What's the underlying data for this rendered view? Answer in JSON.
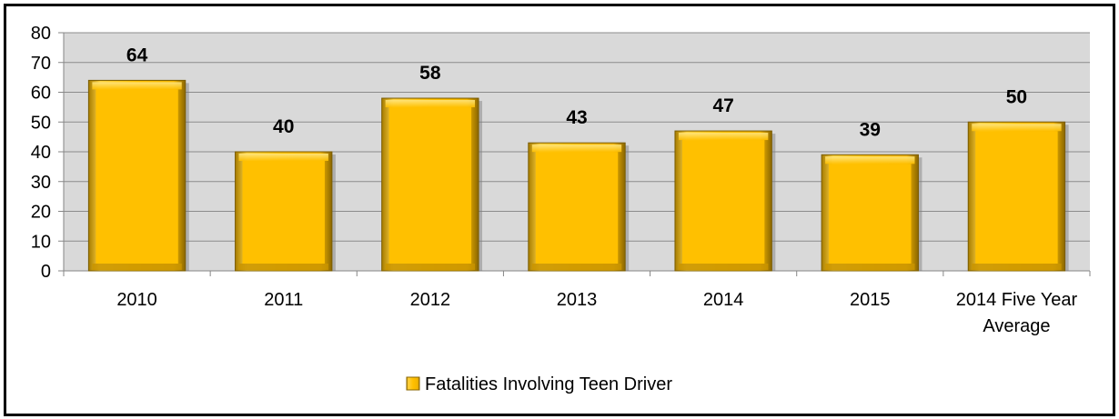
{
  "chart_data": {
    "type": "bar",
    "categories": [
      "2010",
      "2011",
      "2012",
      "2013",
      "2014",
      "2015",
      "2014 Five Year Average"
    ],
    "series": [
      {
        "name": "Fatalities Involving Teen Driver",
        "values": [
          64,
          40,
          58,
          43,
          47,
          39,
          50
        ]
      }
    ],
    "data_labels": [
      "64",
      "40",
      "58",
      "43",
      "47",
      "39",
      "50"
    ],
    "y_ticks": [
      "0",
      "10",
      "20",
      "30",
      "40",
      "50",
      "60",
      "70",
      "80"
    ],
    "ylim": [
      0,
      80
    ],
    "title": "",
    "xlabel": "",
    "ylabel": "",
    "grid": true,
    "legend_position": "bottom",
    "colors": {
      "bar": "#FFC000",
      "bar_light": "#FFE066",
      "bar_dark": "#A67C00",
      "plot_bg": "#D9D9D9",
      "grid": "#8C8C8C"
    }
  }
}
